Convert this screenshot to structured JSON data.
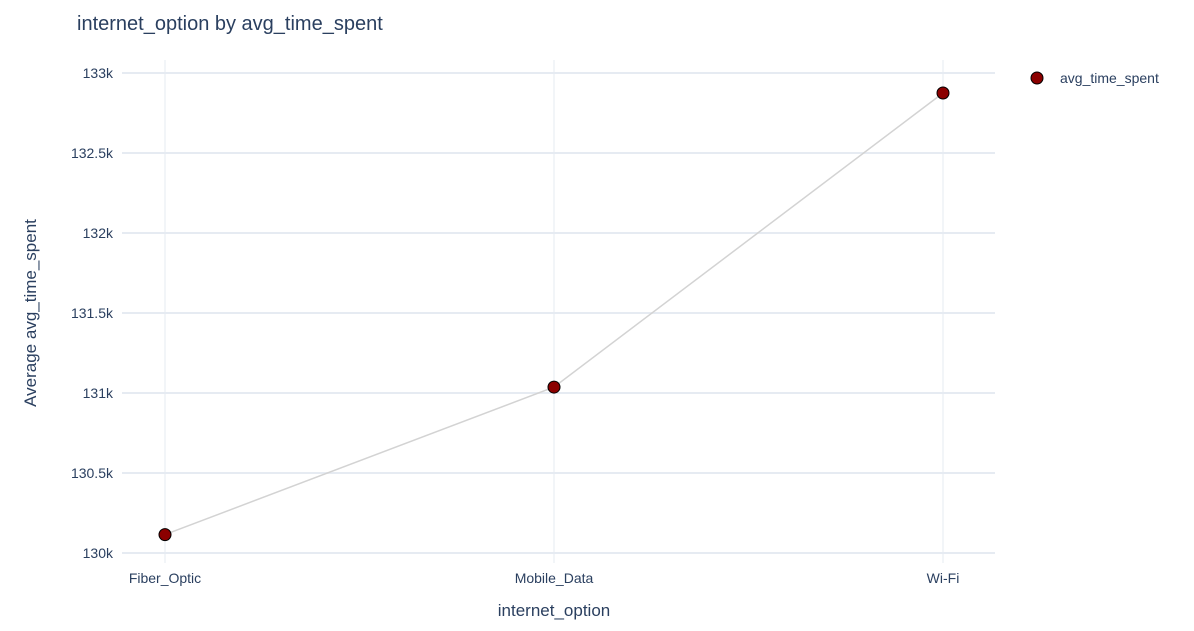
{
  "chart_data": {
    "type": "line",
    "title": "internet_option by avg_time_spent",
    "xlabel": "internet_option",
    "ylabel": "Average avg_time_spent",
    "categories": [
      "Fiber_Optic",
      "Mobile_Data",
      "Wi-Fi"
    ],
    "series": [
      {
        "name": "avg_time_spent",
        "values": [
          130115,
          131037,
          132875
        ]
      }
    ],
    "ylim": [
      130000,
      133000
    ],
    "yticks": [
      130000,
      130500,
      131000,
      131500,
      132000,
      132500,
      133000
    ],
    "ytick_labels": [
      "130k",
      "130.5k",
      "131k",
      "131.5k",
      "132k",
      "132.5k",
      "133k"
    ],
    "grid": true,
    "legend_position": "top-right",
    "colors": {
      "line": "#d3d3d3",
      "marker_fill": "#8b0000",
      "marker_edge": "#000000",
      "grid": "#e6ebf2",
      "text": "#2a3f5f"
    }
  }
}
